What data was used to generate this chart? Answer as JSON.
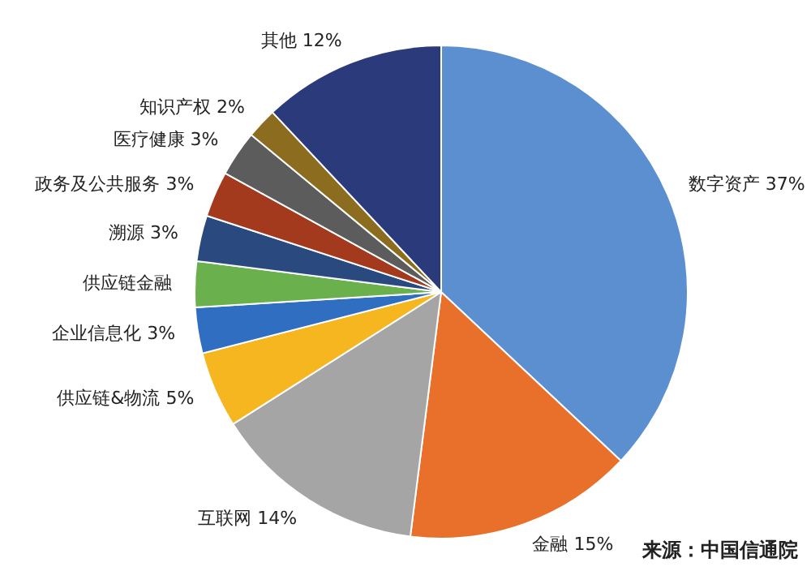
{
  "chart_data": {
    "type": "pie",
    "categories": [
      "数字资产",
      "金融",
      "互联网",
      "供应链&物流",
      "企业信息化",
      "供应链金融",
      "溯源",
      "政务及公共服务",
      "医疗健康",
      "知识产权",
      "其他"
    ],
    "values": [
      37,
      15,
      14,
      5,
      3,
      3,
      3,
      3,
      3,
      2,
      12
    ],
    "value_labels": [
      "37%",
      "15%",
      "14%",
      "5%",
      "3%",
      null,
      "3%",
      "3%",
      "3%",
      "2%",
      "12%"
    ],
    "colors": [
      "#5b8fd0",
      "#e8702a",
      "#a5a5a5",
      "#f5b620",
      "#2f6ec0",
      "#6ab04c",
      "#2a4a7f",
      "#a33a1e",
      "#5c5c5c",
      "#8c6d1f",
      "#2b3a7a"
    ],
    "annotations": [
      "来源：中国信通院"
    ]
  }
}
